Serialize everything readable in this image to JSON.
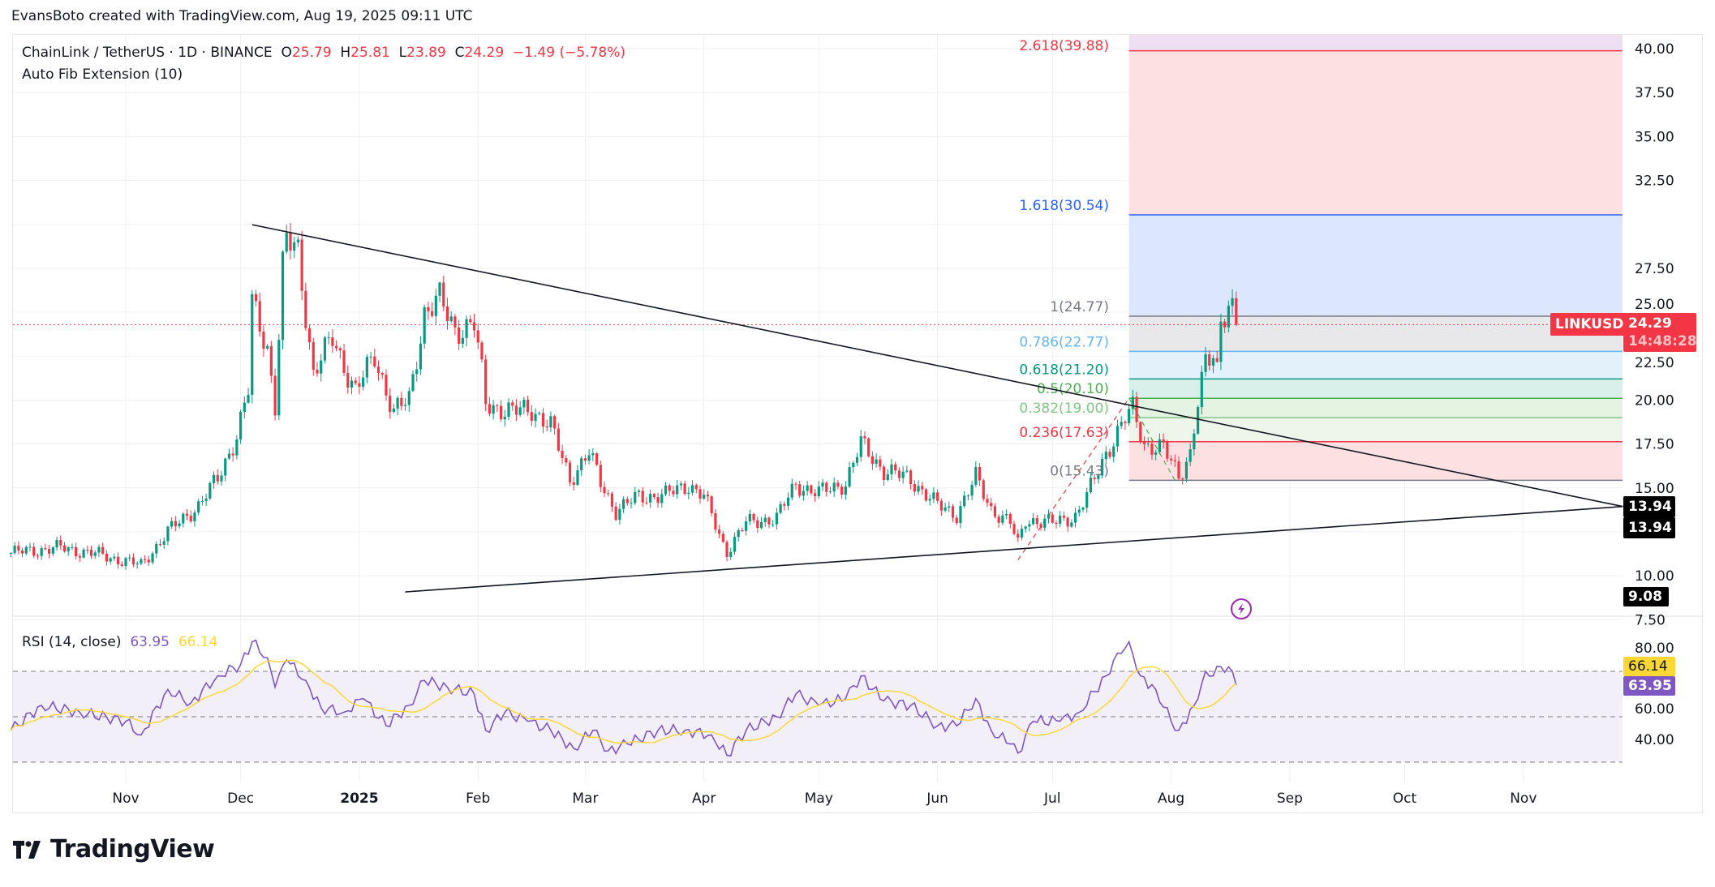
{
  "attribution": "EvansBoto created with TradingView.com, Aug 19, 2025 09:11 UTC",
  "legend": {
    "symbol": "ChainLink / TetherUS · 1D · BINANCE",
    "o_label": "O",
    "o": "25.79",
    "h_label": "H",
    "h": "25.81",
    "l_label": "L",
    "l": "23.89",
    "c_label": "C",
    "c": "24.29",
    "change": "−1.49 (−5.78%)",
    "indicator": "Auto Fib Extension (10)"
  },
  "rsi_legend": {
    "name": "RSI (14, close)",
    "rsi": "63.95",
    "ma": "66.14"
  },
  "tags": {
    "symbol": "LINKUSDT",
    "price": "24.29",
    "countdown": "14:48:28",
    "trend_upper": "13.94",
    "trend_lower": "13.94",
    "trend_start": "9.08",
    "rsi_ma": "66.14",
    "rsi": "63.95"
  },
  "lightning_icon": "lightning-icon",
  "logo": {
    "text": "TradingView",
    "mark": "TV"
  },
  "colors": {
    "up": "#089981",
    "down": "#f23645",
    "rsi": "#7e57c2",
    "rsi_ma": "#fdd835",
    "trendline": "#131722"
  },
  "chart_data": {
    "type": "candlestick",
    "interval": "1D",
    "y_axis_ticks": [
      "40.00",
      "37.50",
      "35.00",
      "32.50",
      "27.50",
      "25.00",
      "22.50",
      "20.00",
      "17.50",
      "15.00",
      "10.00",
      "7.50"
    ],
    "x_axis_ticks": [
      {
        "label": "Nov",
        "date": "2024-11-01"
      },
      {
        "label": "Dec",
        "date": "2024-12-01"
      },
      {
        "label": "2025",
        "date": "2025-01-01"
      },
      {
        "label": "Feb",
        "date": "2025-02-01"
      },
      {
        "label": "Mar",
        "date": "2025-03-01"
      },
      {
        "label": "Apr",
        "date": "2025-04-01"
      },
      {
        "label": "May",
        "date": "2025-05-01"
      },
      {
        "label": "Jun",
        "date": "2025-06-01"
      },
      {
        "label": "Jul",
        "date": "2025-07-01"
      },
      {
        "label": "Aug",
        "date": "2025-08-01"
      },
      {
        "label": "Sep",
        "date": "2025-09-01"
      },
      {
        "label": "Oct",
        "date": "2025-10-01"
      },
      {
        "label": "Nov",
        "date": "2025-11-01"
      }
    ],
    "last_price": 24.29,
    "close_path": [
      [
        "2024-10-02",
        11.3
      ],
      [
        "2024-10-15",
        11.6
      ],
      [
        "2024-10-25",
        11.2
      ],
      [
        "2024-11-05",
        10.6
      ],
      [
        "2024-11-12",
        12.5
      ],
      [
        "2024-11-20",
        14.0
      ],
      [
        "2024-11-25",
        15.5
      ],
      [
        "2024-11-30",
        18.0
      ],
      [
        "2024-12-03",
        20.5
      ],
      [
        "2024-12-04",
        25.5
      ],
      [
        "2024-12-08",
        23.0
      ],
      [
        "2024-12-10",
        19.7
      ],
      [
        "2024-12-12",
        27.5
      ],
      [
        "2024-12-13",
        29.0
      ],
      [
        "2024-12-16",
        28.5
      ],
      [
        "2024-12-20",
        21.5
      ],
      [
        "2024-12-25",
        23.5
      ],
      [
        "2024-12-31",
        20.5
      ],
      [
        "2025-01-05",
        22.5
      ],
      [
        "2025-01-10",
        19.3
      ],
      [
        "2025-01-14",
        20.0
      ],
      [
        "2025-01-18",
        25.0
      ],
      [
        "2025-01-22",
        25.7
      ],
      [
        "2025-01-26",
        24.0
      ],
      [
        "2025-01-31",
        24.3
      ],
      [
        "2025-02-02",
        21.5
      ],
      [
        "2025-02-03",
        19.8
      ],
      [
        "2025-02-10",
        19.3
      ],
      [
        "2025-02-15",
        19.5
      ],
      [
        "2025-02-20",
        18.5
      ],
      [
        "2025-02-25",
        15.5
      ],
      [
        "2025-03-02",
        17.0
      ],
      [
        "2025-03-05",
        15.3
      ],
      [
        "2025-03-09",
        13.7
      ],
      [
        "2025-03-15",
        14.5
      ],
      [
        "2025-03-22",
        14.6
      ],
      [
        "2025-03-28",
        15.2
      ],
      [
        "2025-04-01",
        14.5
      ],
      [
        "2025-04-06",
        11.8
      ],
      [
        "2025-04-07",
        11.4
      ],
      [
        "2025-04-12",
        13.0
      ],
      [
        "2025-04-20",
        13.3
      ],
      [
        "2025-04-25",
        15.2
      ],
      [
        "2025-05-01",
        14.7
      ],
      [
        "2025-05-08",
        15.3
      ],
      [
        "2025-05-12",
        17.5
      ],
      [
        "2025-05-18",
        16.0
      ],
      [
        "2025-05-25",
        15.5
      ],
      [
        "2025-06-01",
        14.0
      ],
      [
        "2025-06-06",
        13.5
      ],
      [
        "2025-06-11",
        15.6
      ],
      [
        "2025-06-15",
        13.8
      ],
      [
        "2025-06-20",
        13.0
      ],
      [
        "2025-06-22",
        11.8
      ],
      [
        "2025-06-24",
        13.2
      ],
      [
        "2025-07-01",
        13.0
      ],
      [
        "2025-07-07",
        13.4
      ],
      [
        "2025-07-10",
        14.5
      ],
      [
        "2025-07-15",
        17.0
      ],
      [
        "2025-07-20",
        18.9
      ],
      [
        "2025-07-22",
        19.5
      ],
      [
        "2025-07-25",
        17.5
      ],
      [
        "2025-07-30",
        17.2
      ],
      [
        "2025-08-03",
        15.7
      ],
      [
        "2025-08-06",
        17.0
      ],
      [
        "2025-08-08",
        19.8
      ],
      [
        "2025-08-10",
        22.0
      ],
      [
        "2025-08-12",
        22.5
      ],
      [
        "2025-08-13",
        21.8
      ],
      [
        "2025-08-14",
        24.8
      ],
      [
        "2025-08-17",
        25.79
      ],
      [
        "2025-08-18",
        24.29
      ]
    ],
    "trendlines": [
      {
        "from": [
          "2024-12-04",
          29.98
        ],
        "to": [
          "2025-11-27",
          13.94
        ]
      },
      {
        "from": [
          "2025-01-13",
          9.08
        ],
        "to": [
          "2025-11-27",
          13.94
        ]
      }
    ],
    "fib": {
      "start_date": "2025-07-21",
      "swing": [
        [
          "2025-06-22",
          10.9
        ],
        [
          "2025-07-21",
          20.1
        ],
        [
          "2025-08-02",
          15.43
        ]
      ],
      "levels": [
        {
          "label": "0(15.43)",
          "price": 15.43,
          "color": "#787b86",
          "fill": "#fde0e2"
        },
        {
          "label": "0.236(17.63)",
          "price": 17.63,
          "color": "#f23645",
          "fill": "#eef6ec"
        },
        {
          "label": "0.382(19.00)",
          "price": 19.0,
          "color": "#81c784",
          "fill": "#e5f3e3"
        },
        {
          "label": "0.5(20.10)",
          "price": 20.1,
          "color": "#4caf50",
          "fill": "#d8efea"
        },
        {
          "label": "0.618(21.20)",
          "price": 21.2,
          "color": "#089981",
          "fill": "#e3f1fb"
        },
        {
          "label": "0.786(22.77)",
          "price": 22.77,
          "color": "#64b5f6",
          "fill": "#e8e8ea"
        },
        {
          "label": "1(24.77)",
          "price": 24.77,
          "color": "#787b86",
          "fill": "#dce6fc"
        },
        {
          "label": "1.618(30.54)",
          "price": 30.54,
          "color": "#2962ff",
          "fill": "#fde0e2"
        },
        {
          "label": "2.618(39.88)",
          "price": 39.88,
          "color": "#f23645",
          "fill": "#efdff3"
        }
      ]
    },
    "rsi": {
      "period": 14,
      "y_axis_ticks": [
        "80.00",
        "60.00",
        "40.00"
      ],
      "bands": [
        70,
        50,
        30
      ],
      "path": [
        [
          "2024-10-02",
          44
        ],
        [
          "2024-10-10",
          55
        ],
        [
          "2024-10-20",
          52
        ],
        [
          "2024-11-01",
          48
        ],
        [
          "2024-11-05",
          42
        ],
        [
          "2024-11-12",
          62
        ],
        [
          "2024-11-18",
          56
        ],
        [
          "2024-11-25",
          68
        ],
        [
          "2024-12-01",
          73
        ],
        [
          "2024-12-04",
          83
        ],
        [
          "2024-12-08",
          76
        ],
        [
          "2024-12-10",
          63
        ],
        [
          "2024-12-13",
          75
        ],
        [
          "2024-12-18",
          66
        ],
        [
          "2024-12-22",
          54
        ],
        [
          "2024-12-28",
          52
        ],
        [
          "2025-01-02",
          58
        ],
        [
          "2025-01-08",
          46
        ],
        [
          "2025-01-14",
          55
        ],
        [
          "2025-01-18",
          66
        ],
        [
          "2025-01-24",
          63
        ],
        [
          "2025-01-31",
          60
        ],
        [
          "2025-02-03",
          44
        ],
        [
          "2025-02-08",
          52
        ],
        [
          "2025-02-14",
          48
        ],
        [
          "2025-02-20",
          44
        ],
        [
          "2025-02-26",
          36
        ],
        [
          "2025-03-03",
          44
        ],
        [
          "2025-03-07",
          35
        ],
        [
          "2025-03-12",
          38
        ],
        [
          "2025-03-20",
          44
        ],
        [
          "2025-03-27",
          44
        ],
        [
          "2025-04-03",
          42
        ],
        [
          "2025-04-07",
          33
        ],
        [
          "2025-04-12",
          44
        ],
        [
          "2025-04-20",
          50
        ],
        [
          "2025-04-25",
          60
        ],
        [
          "2025-05-01",
          55
        ],
        [
          "2025-05-08",
          58
        ],
        [
          "2025-05-12",
          68
        ],
        [
          "2025-05-18",
          57
        ],
        [
          "2025-05-25",
          55
        ],
        [
          "2025-06-01",
          46
        ],
        [
          "2025-06-06",
          46
        ],
        [
          "2025-06-11",
          58
        ],
        [
          "2025-06-15",
          44
        ],
        [
          "2025-06-20",
          38
        ],
        [
          "2025-06-22",
          34
        ],
        [
          "2025-06-26",
          48
        ],
        [
          "2025-07-03",
          48
        ],
        [
          "2025-07-08",
          52
        ],
        [
          "2025-07-15",
          68
        ],
        [
          "2025-07-18",
          78
        ],
        [
          "2025-07-21",
          83
        ],
        [
          "2025-07-24",
          68
        ],
        [
          "2025-07-28",
          62
        ],
        [
          "2025-08-01",
          48
        ],
        [
          "2025-08-03",
          44
        ],
        [
          "2025-08-07",
          55
        ],
        [
          "2025-08-10",
          70
        ],
        [
          "2025-08-12",
          68
        ],
        [
          "2025-08-14",
          72
        ],
        [
          "2025-08-16",
          72
        ],
        [
          "2025-08-17",
          70
        ],
        [
          "2025-08-18",
          63.95
        ]
      ]
    }
  }
}
